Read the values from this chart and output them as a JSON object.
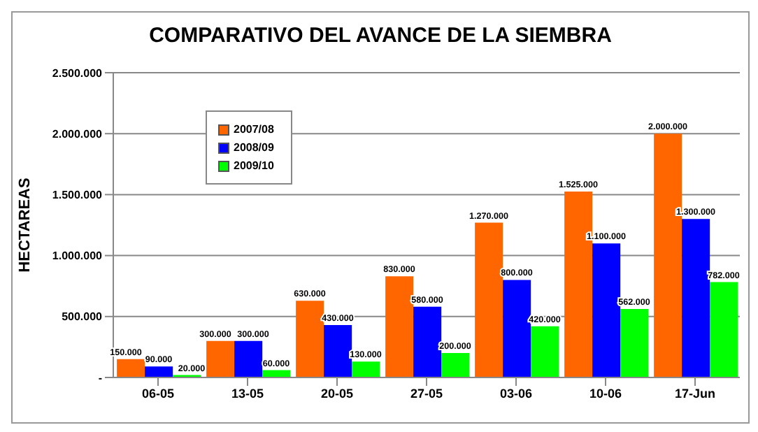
{
  "chart_data": {
    "type": "bar",
    "title": "COMPARATIVO DEL AVANCE DE LA SIEMBRA",
    "ylabel": "HECTAREAS",
    "categories": [
      "06-05",
      "13-05",
      "20-05",
      "27-05",
      "03-06",
      "10-06",
      "17-Jun"
    ],
    "series": [
      {
        "name": "2007/08",
        "color": "#ff6600",
        "values": [
          150000,
          300000,
          630000,
          830000,
          1270000,
          1525000,
          2000000
        ],
        "value_labels": [
          "150.000",
          "300.000",
          "630.000",
          "830.000",
          "1.270.000",
          "1.525.000",
          "2.000.000"
        ]
      },
      {
        "name": "2008/09",
        "color": "#0000ff",
        "values": [
          90000,
          300000,
          430000,
          580000,
          800000,
          1100000,
          1300000
        ],
        "value_labels": [
          "90.000",
          "300.000",
          "430.000",
          "580.000",
          "800.000",
          "1.100.000",
          "1.300.000"
        ]
      },
      {
        "name": "2009/10",
        "color": "#00ff00",
        "values": [
          20000,
          60000,
          130000,
          200000,
          420000,
          562000,
          782000
        ],
        "value_labels": [
          "20.000",
          "60.000",
          "130.000",
          "200.000",
          "420.000",
          "562.000",
          "782.000"
        ]
      }
    ],
    "ylim": [
      0,
      2500000
    ],
    "yticks": [
      {
        "value": 0,
        "label": "-"
      },
      {
        "value": 500000,
        "label": "500.000"
      },
      {
        "value": 1000000,
        "label": "1.000.000"
      },
      {
        "value": 1500000,
        "label": "1.500.000"
      },
      {
        "value": 2000000,
        "label": "2.000.000"
      },
      {
        "value": 2500000,
        "label": "2.500.000"
      }
    ],
    "grid": "y",
    "legend": "top left"
  }
}
